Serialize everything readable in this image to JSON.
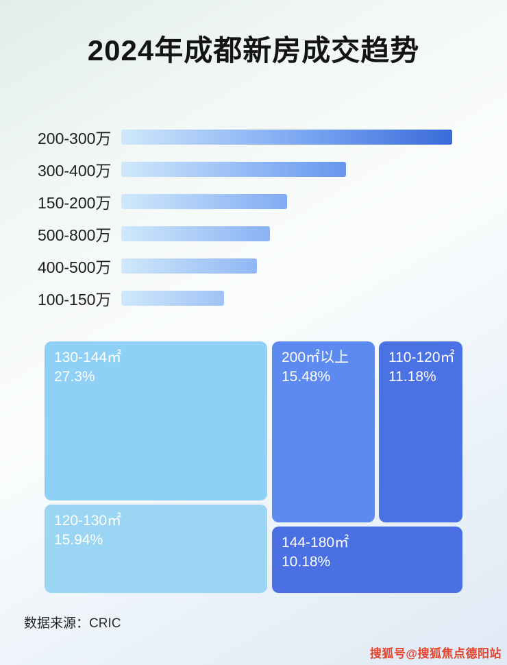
{
  "title": "2024年成都新房成交趋势",
  "chart_data": [
    {
      "type": "bar",
      "title": "2024年成都新房成交趋势",
      "orientation": "horizontal",
      "categories": [
        "200-300万",
        "300-400万",
        "150-200万",
        "500-800万",
        "400-500万",
        "100-150万"
      ],
      "values": [
        100,
        68,
        50,
        45,
        41,
        31
      ],
      "axis_labels": "none",
      "grid": false,
      "legend": "none",
      "bar_gradient": [
        "#cfe8fb",
        "#3a6bd9"
      ]
    },
    {
      "type": "treemap",
      "cells": [
        {
          "label": "130-144㎡",
          "value": "27.3%",
          "color": "#8fd0f6"
        },
        {
          "label": "120-130㎡",
          "value": "15.94%",
          "color": "#9ad5f3"
        },
        {
          "label": "200㎡以上",
          "value": "15.48%",
          "color": "#5c8af0"
        },
        {
          "label": "110-120㎡",
          "value": "11.18%",
          "color": "#4a72e4"
        },
        {
          "label": "144-180㎡",
          "value": "10.18%",
          "color": "#4a70e3"
        }
      ]
    }
  ],
  "footer": {
    "source": "数据来源：CRIC"
  },
  "watermark": "搜狐号@搜狐焦点德阳站"
}
